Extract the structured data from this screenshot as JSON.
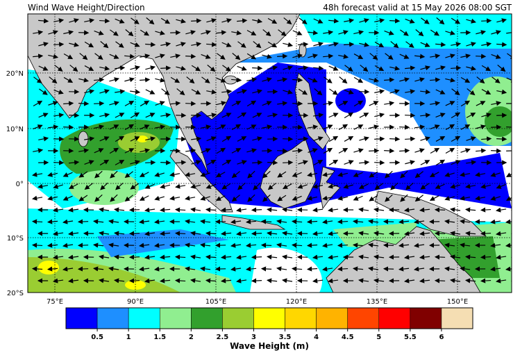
{
  "header": {
    "title": "Wind Wave Height/Direction",
    "valid": "48h forecast valid at 15 May 2026 08:00 SGT"
  },
  "map": {
    "lat_labels": [
      "20°N",
      "10°N",
      "0°",
      "10°S",
      "20°S"
    ],
    "lon_labels": [
      "75°E",
      "90°E",
      "105°E",
      "120°E",
      "135°E",
      "150°E"
    ]
  },
  "legend": {
    "colors": [
      "#0000ff",
      "#1e8fff",
      "#00ffff",
      "#90ee90",
      "#32a02d",
      "#9acd32",
      "#ffff00",
      "#ffd700",
      "#ffb300",
      "#ff4500",
      "#ff0000",
      "#800000",
      "#f5deb3"
    ],
    "ticks": [
      0.5,
      1,
      1.5,
      2,
      2.5,
      3,
      3.5,
      4,
      4.5,
      5,
      5.5,
      6
    ],
    "label": "Wave Height (m)"
  }
}
